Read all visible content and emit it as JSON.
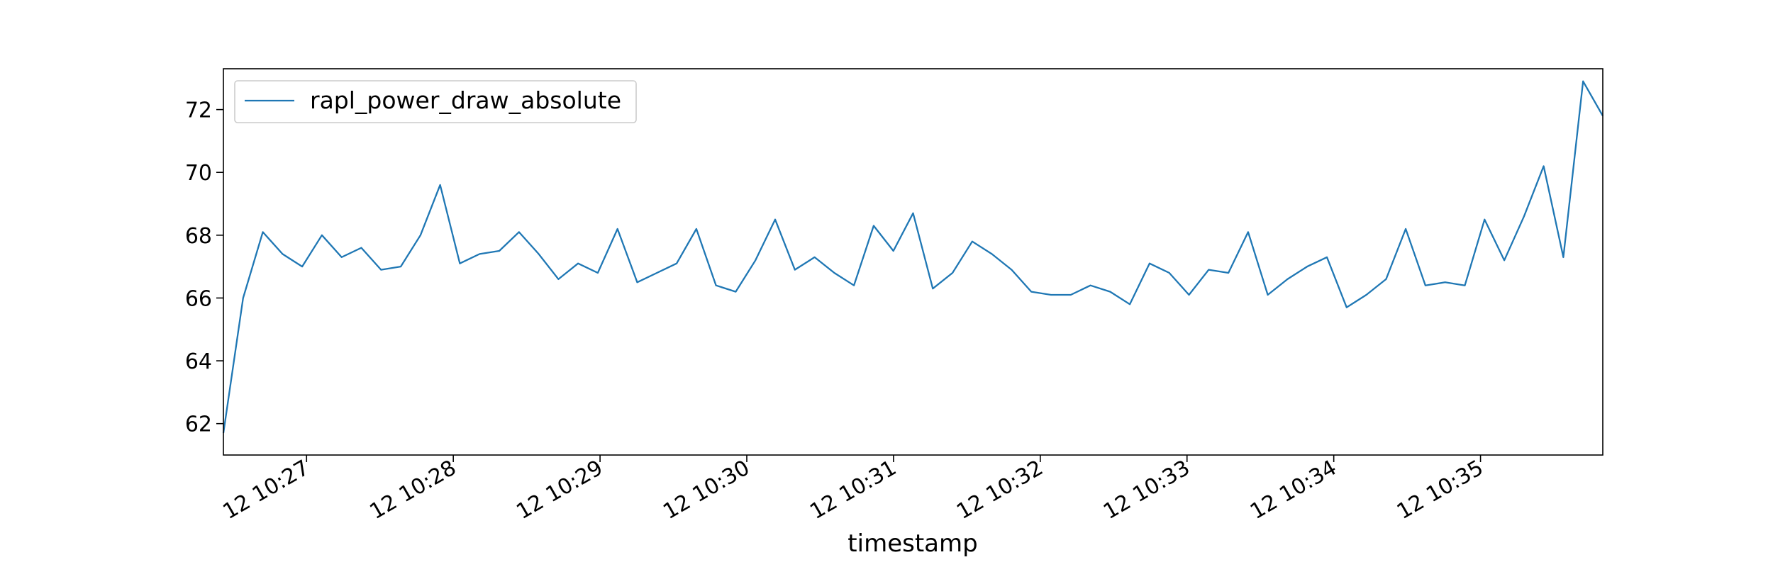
{
  "chart_data": {
    "type": "line",
    "title": "",
    "xlabel": "timestamp",
    "ylabel": "",
    "grid": false,
    "legend_position": "top-left",
    "x_start": "12 10:26:26",
    "x_end": "12 10:35:50",
    "xlim": [
      "12 10:26:26",
      "12 10:35:50"
    ],
    "ylim": [
      61.0,
      73.3
    ],
    "x_ticks": [
      "12 10:27",
      "12 10:28",
      "12 10:29",
      "12 10:30",
      "12 10:31",
      "12 10:32",
      "12 10:33",
      "12 10:34",
      "12 10:35"
    ],
    "y_ticks": [
      62,
      64,
      66,
      68,
      70,
      72
    ],
    "series": [
      {
        "name": "rapl_power_draw_absolute",
        "color": "#1f77b4",
        "values": [
          61.7,
          66.0,
          68.1,
          67.4,
          67.0,
          68.0,
          67.3,
          67.6,
          66.9,
          67.0,
          68.0,
          69.6,
          67.1,
          67.4,
          67.5,
          68.1,
          67.4,
          66.6,
          67.1,
          66.8,
          68.2,
          66.5,
          66.8,
          67.1,
          68.2,
          66.4,
          66.2,
          67.2,
          68.5,
          66.9,
          67.3,
          66.8,
          66.4,
          68.3,
          67.5,
          68.7,
          66.3,
          66.8,
          67.8,
          67.4,
          66.9,
          66.2,
          66.1,
          66.1,
          66.4,
          66.2,
          65.8,
          67.1,
          66.8,
          66.1,
          66.9,
          66.8,
          68.1,
          66.1,
          66.6,
          67.0,
          67.3,
          65.7,
          66.1,
          66.6,
          68.2,
          66.4,
          66.5,
          66.4,
          68.5,
          67.2,
          68.6,
          70.2,
          67.3,
          72.9,
          71.8
        ]
      }
    ]
  }
}
